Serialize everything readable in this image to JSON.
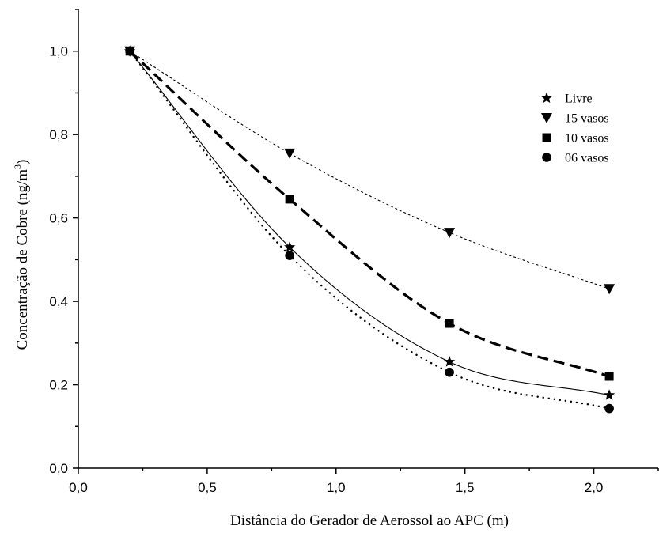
{
  "chart_data": {
    "type": "scatter",
    "title": "",
    "xlabel": "Distância do Gerador de Aerossol ao APC (m)",
    "ylabel_main": "Concentração de Cobre (ng/m",
    "ylabel_sup": "3",
    "ylabel_close": ")",
    "xlim": [
      0.0,
      2.25
    ],
    "ylim": [
      0.0,
      1.1
    ],
    "x_ticks": [
      "0,0",
      "0,5",
      "1,0",
      "1,5",
      "2,0"
    ],
    "x_tick_values": [
      0.0,
      0.5,
      1.0,
      1.5,
      2.0
    ],
    "y_ticks": [
      "0,0",
      "0,2",
      "0,4",
      "0,6",
      "0,8",
      "1,0"
    ],
    "y_tick_values": [
      0.0,
      0.2,
      0.4,
      0.6,
      0.8,
      1.0
    ],
    "grid": false,
    "legend_position": "top-right",
    "x": [
      0.2,
      0.82,
      1.44,
      2.06
    ],
    "series": [
      {
        "name": "Livre",
        "marker": "star",
        "line": "solid",
        "values": [
          1.0,
          0.53,
          0.255,
          0.175
        ]
      },
      {
        "name": "15 vasos",
        "marker": "triangle-down",
        "line": "short-dash",
        "values": [
          1.0,
          0.755,
          0.565,
          0.43
        ]
      },
      {
        "name": "10 vasos",
        "marker": "square",
        "line": "long-dash",
        "values": [
          1.0,
          0.645,
          0.347,
          0.22
        ]
      },
      {
        "name": "06 vasos",
        "marker": "circle",
        "line": "dotted",
        "values": [
          1.0,
          0.51,
          0.23,
          0.143
        ]
      }
    ]
  }
}
